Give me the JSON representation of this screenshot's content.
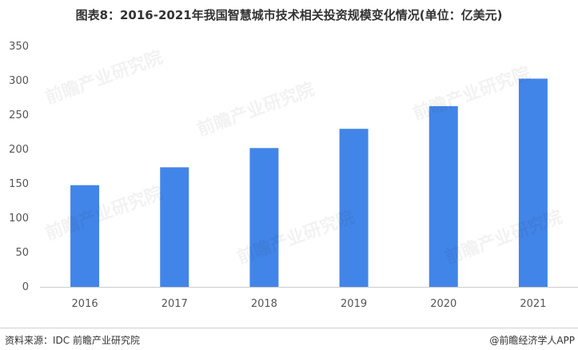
{
  "chart_data": {
    "type": "bar",
    "title": "图表8：2016-2021年我国智慧城市技术相关投资规模变化情况(单位：亿美元)",
    "categories": [
      "2016",
      "2017",
      "2018",
      "2019",
      "2020",
      "2021"
    ],
    "values": [
      148,
      174,
      202,
      230,
      263,
      303
    ],
    "ylim": [
      0,
      350
    ],
    "yticks": [
      0,
      50,
      100,
      150,
      200,
      250,
      300,
      350
    ],
    "xlabel": "",
    "ylabel": "",
    "grid": false,
    "bar_color": "#4285e8"
  },
  "footer": {
    "source": "资料来源：IDC 前瞻产业研究院",
    "credit": "@前瞻经济学人APP"
  },
  "watermark": "前瞻产业研究院"
}
